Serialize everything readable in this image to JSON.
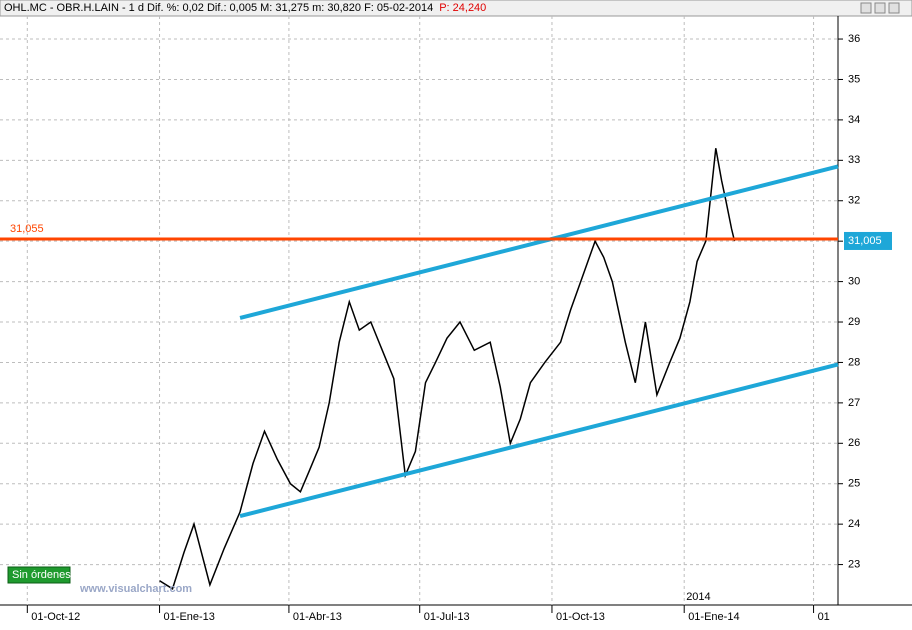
{
  "chart_data": {
    "type": "line",
    "header": [
      "OHL.MC - OBR.H.LAIN - 1 d  Dif. %: 0,02  Dif.: 0,005  M: 31,275  m: 30,820  F: 05-02-2014",
      "P: 24,240"
    ],
    "x": [
      "2013-01-01",
      "2013-01-10",
      "2013-01-18",
      "2013-01-25",
      "2013-02-05",
      "2013-02-15",
      "2013-02-26",
      "2013-03-07",
      "2013-03-15",
      "2013-03-24",
      "2013-04-02",
      "2013-04-09",
      "2013-04-15",
      "2013-04-22",
      "2013-04-29",
      "2013-05-06",
      "2013-05-13",
      "2013-05-20",
      "2013-05-28",
      "2013-06-05",
      "2013-06-13",
      "2013-06-21",
      "2013-06-28",
      "2013-07-05",
      "2013-07-12",
      "2013-07-20",
      "2013-07-29",
      "2013-08-08",
      "2013-08-19",
      "2013-08-26",
      "2013-09-02",
      "2013-09-09",
      "2013-09-16",
      "2013-09-26",
      "2013-10-07",
      "2013-10-14",
      "2013-10-21",
      "2013-10-31",
      "2013-11-06",
      "2013-11-12",
      "2013-11-21",
      "2013-11-28",
      "2013-12-05",
      "2013-12-13",
      "2013-12-22",
      "2013-12-29",
      "2014-01-05",
      "2014-01-10",
      "2014-01-16",
      "2014-01-20",
      "2014-01-23",
      "2014-01-27",
      "2014-01-30",
      "2014-02-03",
      "2014-02-05"
    ],
    "values": [
      22.6,
      22.4,
      23.3,
      24.0,
      22.5,
      23.4,
      24.3,
      25.5,
      26.3,
      25.6,
      25.0,
      24.8,
      25.3,
      25.9,
      27.0,
      28.5,
      29.5,
      28.8,
      29.0,
      28.3,
      27.6,
      25.2,
      25.8,
      27.5,
      28.0,
      28.6,
      29.0,
      28.3,
      28.5,
      27.4,
      26.0,
      26.6,
      27.5,
      28.0,
      28.5,
      29.3,
      30.0,
      31.0,
      30.6,
      30.0,
      28.5,
      27.5,
      29.0,
      27.2,
      28.0,
      28.6,
      29.5,
      30.5,
      31.0,
      32.3,
      33.3,
      32.5,
      32.0,
      31.3,
      31.005
    ],
    "color": "#000000",
    "last_price": {
      "value": 31.005,
      "label": "31,005"
    },
    "hline": {
      "value": 31.055,
      "label": "31,055",
      "color": "#ff4500"
    },
    "trendlines": [
      {
        "x": [
          "2013-02-26",
          "2014-04-18"
        ],
        "values": [
          29.1,
          32.85
        ],
        "color": "#1ea7d8"
      },
      {
        "x": [
          "2013-02-26",
          "2014-04-18"
        ],
        "values": [
          24.2,
          27.95
        ],
        "color": "#1ea7d8"
      }
    ],
    "xlim": [
      "2012-09-12",
      "2014-04-18"
    ],
    "xticks": [
      {
        "value": "2012-10-01",
        "label": "01-Oct-12"
      },
      {
        "value": "2013-01-01",
        "label": "01-Ene-13"
      },
      {
        "value": "2013-04-01",
        "label": "01-Abr-13"
      },
      {
        "value": "2013-07-01",
        "label": "01-Jul-13"
      },
      {
        "value": "2013-10-01",
        "label": "01-Oct-13"
      },
      {
        "value": "2014-01-01",
        "label": "01-Ene-14"
      },
      {
        "value": "2014-04-01",
        "label": "01"
      }
    ],
    "year_labels": [
      {
        "value": "2014-01-01",
        "label": "2014"
      }
    ],
    "ylim": [
      22.0,
      36.57
    ],
    "yticks": [
      23,
      24,
      25,
      26,
      27,
      28,
      29,
      30,
      31,
      32,
      33,
      34,
      35,
      36
    ],
    "grid": true,
    "badge": "Sin órdenes",
    "watermark": "www.visualchart.com"
  }
}
